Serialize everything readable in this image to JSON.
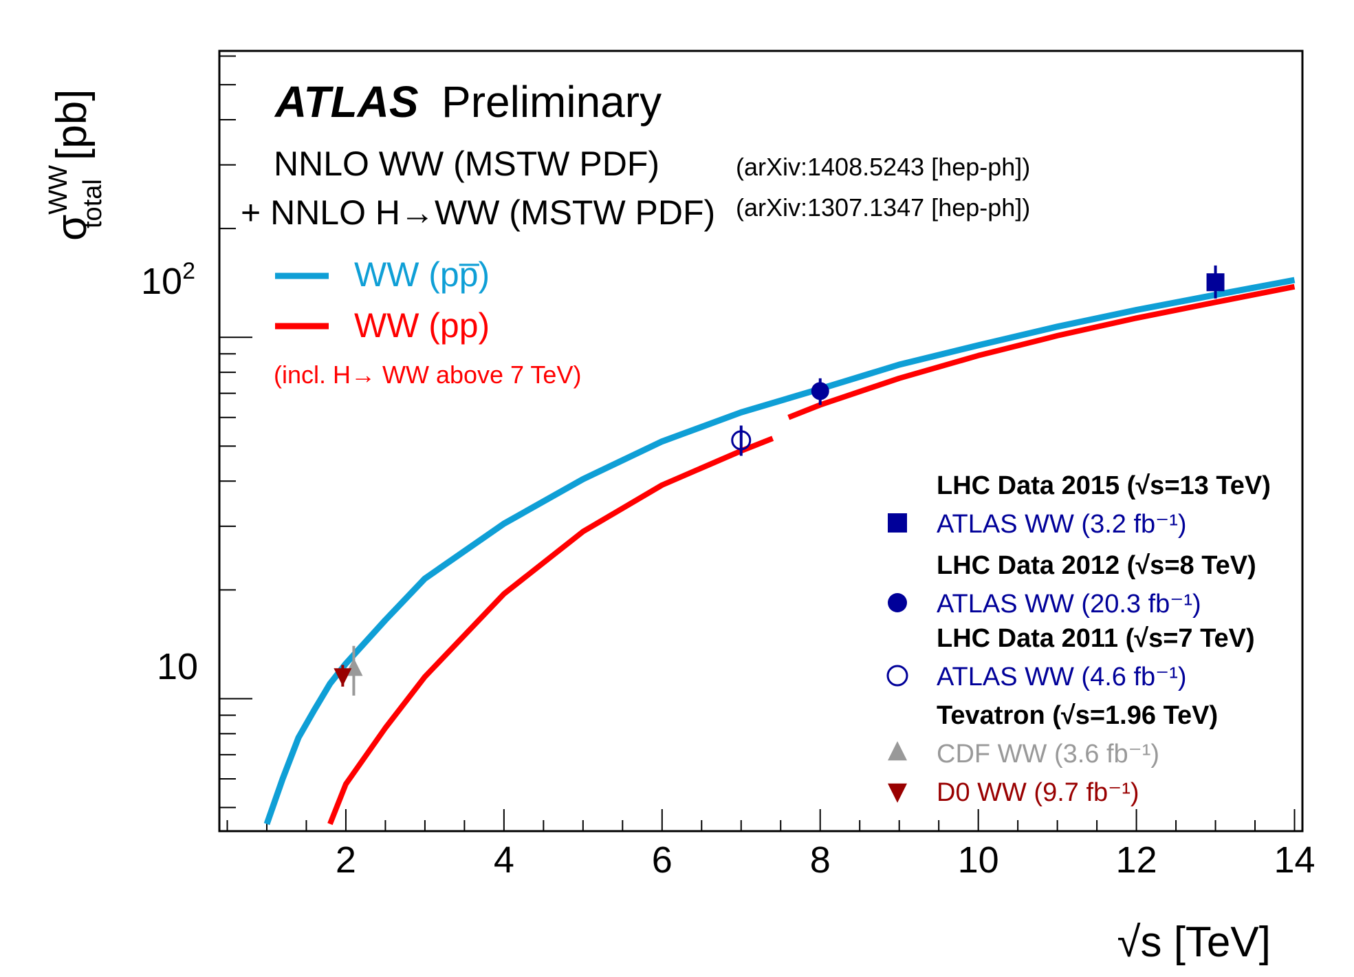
{
  "chart_data": {
    "type": "line",
    "x_scale": "linear",
    "y_scale": "log",
    "xlim": [
      0.4,
      14.1
    ],
    "ylim": [
      4.3,
      620
    ],
    "xlabel": "√s [TeV]",
    "ylabel": "σ_total^WW [pb]",
    "x_ticks": [
      2,
      4,
      6,
      8,
      10,
      12,
      14
    ],
    "x_tick_labels": [
      "2",
      "4",
      "6",
      "8",
      "10",
      "12",
      "14"
    ],
    "y_major_ticks": [
      10,
      100
    ],
    "grid": false,
    "header": {
      "brand": "ATLAS",
      "status": "Preliminary",
      "theory_line1": "NNLO WW (MSTW PDF)",
      "theory_ref1": "(arXiv:1408.5243 [hep-ph])",
      "theory_line2": "+ NNLO H→WW (MSTW PDF)",
      "theory_ref2": "(arXiv:1307.1347 [hep-ph])"
    },
    "theory_legend": [
      {
        "label": "WW (pp̅)",
        "color": "#0f9fd6"
      },
      {
        "label": "WW (pp)",
        "color": "#ff0000"
      }
    ],
    "theory_note": "(incl. H→ WW above 7 TeV)",
    "series": [
      {
        "name": "WW (pp̅)",
        "color": "#0f9fd6",
        "x": [
          1.0,
          1.2,
          1.4,
          1.6,
          1.8,
          2.0,
          2.5,
          3.0,
          4.0,
          5.0,
          6.0,
          7.0,
          8.0,
          9.0,
          10.0,
          11.0,
          12.0,
          13.0,
          14.0
        ],
        "y": [
          4.5,
          6.0,
          7.8,
          9.3,
          11.0,
          12.5,
          16.5,
          21.5,
          30.5,
          40.5,
          51.5,
          62.0,
          72.0,
          84.0,
          95.0,
          107.0,
          119.0,
          131.0,
          144.0
        ]
      },
      {
        "name": "WW (pp)",
        "color": "#ff0000",
        "x": [
          1.8,
          2.0,
          2.5,
          3.0,
          4.0,
          5.0,
          6.0,
          7.0,
          7.4
        ],
        "y": [
          4.5,
          5.8,
          8.3,
          11.5,
          19.5,
          29.0,
          39.0,
          48.5,
          52.5
        ]
      },
      {
        "name": "WW (pp) incl. H→WW",
        "color": "#ff0000",
        "x": [
          7.6,
          8.0,
          9.0,
          10.0,
          11.0,
          12.0,
          13.0,
          14.0
        ],
        "y": [
          60.0,
          65.0,
          77.0,
          89.0,
          101.0,
          113.0,
          125.0,
          138.0
        ]
      }
    ],
    "measurements": [
      {
        "group": "LHC Data 2015 (√s=13 TeV)",
        "label": "ATLAS WW (3.2 fb⁻¹)",
        "x": 13.0,
        "y": 142.0,
        "err_lo": 128.0,
        "err_hi": 158.0,
        "marker": "square",
        "color": "#000099",
        "text_color": "#000099"
      },
      {
        "group": "LHC Data 2012 (√s=8 TeV)",
        "label": "ATLAS WW (20.3 fb⁻¹)",
        "x": 8.0,
        "y": 71.0,
        "err_lo": 65.0,
        "err_hi": 77.0,
        "marker": "circle",
        "color": "#000099",
        "text_color": "#000099"
      },
      {
        "group": "LHC Data 2011 (√s=7 TeV)",
        "label": "ATLAS WW (4.6 fb⁻¹)",
        "x": 7.0,
        "y": 51.9,
        "err_lo": 47.0,
        "err_hi": 57.0,
        "marker": "open-circle",
        "color": "#000099",
        "text_color": "#000099"
      },
      {
        "group": "Tevatron (√s=1.96 TeV)",
        "label": "CDF WW (3.6 fb⁻¹)",
        "x": 2.1,
        "y": 12.1,
        "err_lo": 10.2,
        "err_hi": 14.0,
        "marker": "triangle-up",
        "color": "#999999",
        "text_color": "#999999"
      },
      {
        "group": "",
        "label": "D0 WW (9.7 fb⁻¹)",
        "x": 1.96,
        "y": 11.6,
        "err_lo": 10.8,
        "err_hi": 12.4,
        "marker": "triangle-down",
        "color": "#990000",
        "text_color": "#990000"
      }
    ]
  }
}
